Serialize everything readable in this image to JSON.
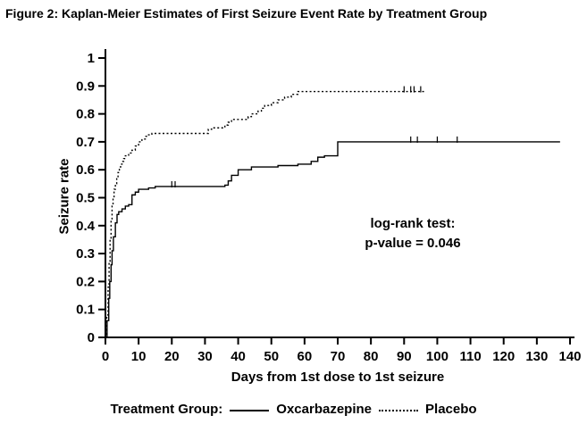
{
  "figure": {
    "label": "Figure 2"
  },
  "chart_data": {
    "type": "line",
    "subtype": "kaplan-meier-step",
    "title": "Figure 2: Kaplan-Meier Estimates of First Seizure Event Rate by Treatment Group",
    "xlabel": "Days from 1st dose to 1st seizure",
    "ylabel": "Seizure rate",
    "xlim": [
      0,
      140
    ],
    "ylim": [
      0,
      1
    ],
    "xticks": [
      0,
      10,
      20,
      30,
      40,
      50,
      60,
      70,
      80,
      90,
      100,
      110,
      120,
      130,
      140
    ],
    "yticks": [
      0,
      0.1,
      0.2,
      0.3,
      0.4,
      0.5,
      0.6,
      0.7,
      0.8,
      0.9,
      1
    ],
    "grid": false,
    "colors": {
      "axis": "#000000",
      "series": "#000000",
      "background": "#ffffff"
    },
    "annotation": {
      "line1": "log-rank test:",
      "line2": "p-value = 0.046",
      "x": 90,
      "y": 0.42
    },
    "legend": {
      "label": "Treatment Group:",
      "position": "bottom",
      "entries": [
        {
          "name": "Oxcarbazepine",
          "line_style": "solid"
        },
        {
          "name": "Placebo",
          "line_style": "dotted"
        }
      ]
    },
    "series": [
      {
        "name": "Oxcarbazepine",
        "style": "solid",
        "points": [
          [
            0,
            0
          ],
          [
            0.5,
            0.06
          ],
          [
            1,
            0.14
          ],
          [
            1.3,
            0.2
          ],
          [
            1.7,
            0.26
          ],
          [
            2,
            0.31
          ],
          [
            2.4,
            0.36
          ],
          [
            3,
            0.41
          ],
          [
            3.5,
            0.44
          ],
          [
            4,
            0.45
          ],
          [
            5,
            0.46
          ],
          [
            6,
            0.47
          ],
          [
            7,
            0.475
          ],
          [
            8,
            0.51
          ],
          [
            9,
            0.52
          ],
          [
            10,
            0.53
          ],
          [
            13,
            0.535
          ],
          [
            15,
            0.54
          ],
          [
            20,
            0.54
          ],
          [
            36,
            0.545
          ],
          [
            37,
            0.56
          ],
          [
            38,
            0.58
          ],
          [
            40,
            0.6
          ],
          [
            44,
            0.61
          ],
          [
            52,
            0.615
          ],
          [
            58,
            0.62
          ],
          [
            62,
            0.63
          ],
          [
            64,
            0.645
          ],
          [
            66,
            0.65
          ],
          [
            70,
            0.7
          ],
          [
            137,
            0.7
          ]
        ],
        "censor_ticks": [
          [
            20,
            0.54
          ],
          [
            21,
            0.54
          ],
          [
            92,
            0.7
          ],
          [
            94,
            0.7
          ],
          [
            100,
            0.7
          ],
          [
            106,
            0.7
          ]
        ]
      },
      {
        "name": "Placebo",
        "style": "dotted",
        "points": [
          [
            0,
            0
          ],
          [
            0.4,
            0.08
          ],
          [
            0.8,
            0.18
          ],
          [
            1.1,
            0.27
          ],
          [
            1.4,
            0.35
          ],
          [
            1.7,
            0.42
          ],
          [
            2,
            0.47
          ],
          [
            2.3,
            0.5
          ],
          [
            2.6,
            0.53
          ],
          [
            3,
            0.55
          ],
          [
            3.4,
            0.57
          ],
          [
            3.8,
            0.59
          ],
          [
            4.2,
            0.61
          ],
          [
            4.6,
            0.62
          ],
          [
            5,
            0.63
          ],
          [
            5.5,
            0.64
          ],
          [
            6,
            0.65
          ],
          [
            7,
            0.66
          ],
          [
            8,
            0.67
          ],
          [
            9,
            0.685
          ],
          [
            10,
            0.7
          ],
          [
            11,
            0.71
          ],
          [
            12,
            0.72
          ],
          [
            13,
            0.725
          ],
          [
            14,
            0.73
          ],
          [
            30,
            0.73
          ],
          [
            31,
            0.745
          ],
          [
            32,
            0.75
          ],
          [
            36,
            0.76
          ],
          [
            37,
            0.77
          ],
          [
            38,
            0.78
          ],
          [
            43,
            0.79
          ],
          [
            44,
            0.8
          ],
          [
            46,
            0.81
          ],
          [
            47,
            0.82
          ],
          [
            48,
            0.83
          ],
          [
            50,
            0.84
          ],
          [
            52,
            0.85
          ],
          [
            54,
            0.86
          ],
          [
            56,
            0.87
          ],
          [
            58,
            0.88
          ],
          [
            96,
            0.88
          ]
        ],
        "censor_ticks": [
          [
            90,
            0.88
          ],
          [
            92,
            0.88
          ],
          [
            93,
            0.88
          ],
          [
            95,
            0.88
          ]
        ]
      }
    ]
  }
}
